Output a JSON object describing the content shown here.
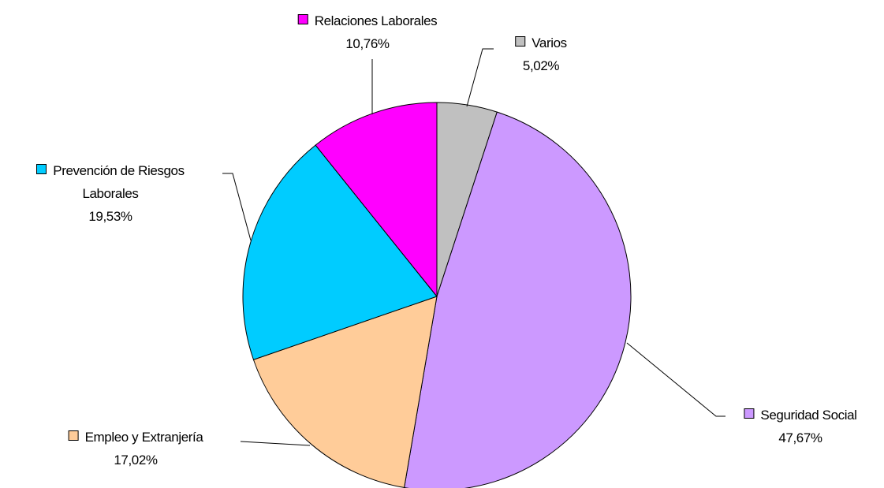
{
  "chart_data": {
    "type": "pie",
    "categories": [
      "Varios",
      "Seguridad Social",
      "Empleo y Extranjería",
      "Prevención de Riesgos Laborales",
      "Relaciones Laborales"
    ],
    "values": [
      5.02,
      47.67,
      17.02,
      19.53,
      10.76
    ],
    "value_labels": [
      "5,02%",
      "47,67%",
      "17,02%",
      "19,53%",
      "10,76%"
    ],
    "colors": [
      "#c0c0c0",
      "#cc99ff",
      "#ffcc99",
      "#00ccff",
      "#ff00ff"
    ]
  }
}
